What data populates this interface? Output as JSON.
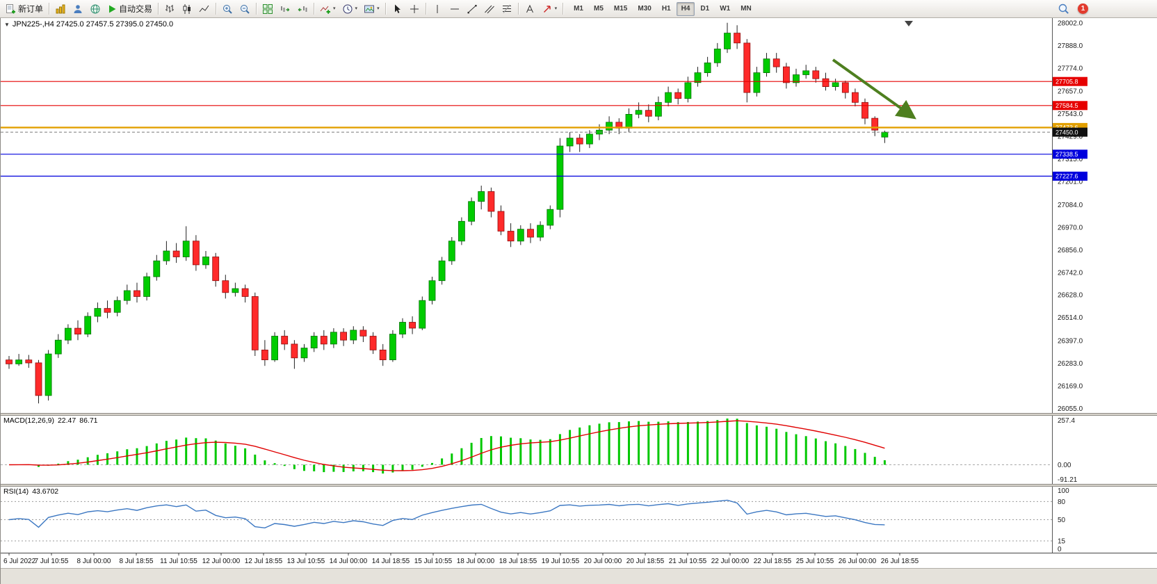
{
  "icons": {
    "dropdown": "▾",
    "collapse": "▼"
  },
  "toolbar": {
    "new_order_label": "新订单",
    "auto_trading_label": "自动交易",
    "timeframes": [
      "M1",
      "M5",
      "M15",
      "M30",
      "H1",
      "H4",
      "D1",
      "W1",
      "MN"
    ],
    "active_timeframe": "H4",
    "notification_count": "1"
  },
  "header": {
    "symbol_info": "JPN225-,H4 27425.0 27457.5 27395.0 27450.0"
  },
  "macd": {
    "name": "MACD(12,26,9)",
    "value_main": "22.47",
    "value_signal": "86.71"
  },
  "rsi": {
    "name": "RSI(14)",
    "value": "43.6702"
  },
  "chart_data": {
    "type": "candlestick",
    "symbol": "JPN225-",
    "timeframe": "H4",
    "ohlc_display": {
      "open": 27425.0,
      "high": 27457.5,
      "low": 27395.0,
      "close": 27450.0
    },
    "ylim": [
      26032,
      28026
    ],
    "y_ticks": [
      28002,
      27888,
      27774,
      27657,
      27543,
      27429,
      27315,
      27201,
      27084,
      26970,
      26856,
      26742,
      26628,
      26514,
      26397,
      26283,
      26169,
      26055
    ],
    "x_labels": [
      "6 Jul 2022",
      "7 Jul 10:55",
      "8 Jul 00:00",
      "8 Jul 18:55",
      "11 Jul 10:55",
      "12 Jul 00:00",
      "12 Jul 18:55",
      "13 Jul 10:55",
      "14 Jul 00:00",
      "14 Jul 18:55",
      "15 Jul 10:55",
      "18 Jul 00:00",
      "18 Jul 18:55",
      "19 Jul 10:55",
      "20 Jul 00:00",
      "20 Jul 18:55",
      "21 Jul 10:55",
      "22 Jul 00:00",
      "22 Jul 18:55",
      "25 Jul 10:55",
      "26 Jul 00:00",
      "26 Jul 18:55"
    ],
    "hlines": [
      {
        "price": 27705.8,
        "color": "#e60000",
        "width": 1.2
      },
      {
        "price": 27584.5,
        "color": "#e60000",
        "width": 1.2
      },
      {
        "price": 27473.6,
        "color": "#e2a000",
        "width": 2.4
      },
      {
        "price": 27338.5,
        "color": "#0000dd",
        "width": 1.2
      },
      {
        "price": 27227.6,
        "color": "#0000dd",
        "width": 1.2
      }
    ],
    "current_price": 27450.0,
    "up_color": "#00cc00",
    "down_color": "#ff2a2a",
    "wick_color": "#222222",
    "trend_arrow": {
      "color": "#4e7f1f"
    },
    "candles": [
      [
        26300,
        26320,
        26255,
        26280
      ],
      [
        26280,
        26330,
        26270,
        26300
      ],
      [
        26300,
        26325,
        26260,
        26285
      ],
      [
        26285,
        26300,
        26080,
        26120
      ],
      [
        26120,
        26350,
        26095,
        26330
      ],
      [
        26330,
        26430,
        26310,
        26400
      ],
      [
        26400,
        26480,
        26380,
        26460
      ],
      [
        26460,
        26500,
        26400,
        26430
      ],
      [
        26430,
        26540,
        26415,
        26520
      ],
      [
        26520,
        26590,
        26490,
        26560
      ],
      [
        26560,
        26600,
        26510,
        26540
      ],
      [
        26540,
        26620,
        26520,
        26600
      ],
      [
        26600,
        26680,
        26580,
        26650
      ],
      [
        26650,
        26690,
        26590,
        26620
      ],
      [
        26620,
        26740,
        26600,
        26720
      ],
      [
        26720,
        26830,
        26700,
        26800
      ],
      [
        26800,
        26900,
        26780,
        26850
      ],
      [
        26850,
        26890,
        26790,
        26820
      ],
      [
        26820,
        26975,
        26800,
        26900
      ],
      [
        26900,
        26930,
        26750,
        26780
      ],
      [
        26780,
        26850,
        26760,
        26820
      ],
      [
        26820,
        26840,
        26670,
        26700
      ],
      [
        26700,
        26730,
        26610,
        26640
      ],
      [
        26640,
        26690,
        26620,
        26660
      ],
      [
        26660,
        26680,
        26590,
        26620
      ],
      [
        26620,
        26640,
        26320,
        26350
      ],
      [
        26350,
        26400,
        26270,
        26300
      ],
      [
        26300,
        26440,
        26290,
        26420
      ],
      [
        26420,
        26450,
        26350,
        26380
      ],
      [
        26380,
        26400,
        26255,
        26310
      ],
      [
        26310,
        26380,
        26290,
        26360
      ],
      [
        26360,
        26440,
        26340,
        26420
      ],
      [
        26420,
        26450,
        26350,
        26380
      ],
      [
        26380,
        26460,
        26360,
        26440
      ],
      [
        26440,
        26460,
        26370,
        26400
      ],
      [
        26400,
        26470,
        26380,
        26450
      ],
      [
        26450,
        26470,
        26390,
        26420
      ],
      [
        26420,
        26440,
        26330,
        26350
      ],
      [
        26350,
        26380,
        26270,
        26300
      ],
      [
        26300,
        26450,
        26290,
        26430
      ],
      [
        26430,
        26510,
        26410,
        26490
      ],
      [
        26490,
        26520,
        26430,
        26460
      ],
      [
        26460,
        26620,
        26450,
        26600
      ],
      [
        26600,
        26720,
        26580,
        26700
      ],
      [
        26700,
        26820,
        26680,
        26800
      ],
      [
        26800,
        26920,
        26780,
        26900
      ],
      [
        26900,
        27020,
        26880,
        27000
      ],
      [
        27000,
        27120,
        26980,
        27100
      ],
      [
        27100,
        27180,
        27060,
        27150
      ],
      [
        27150,
        27170,
        27020,
        27050
      ],
      [
        27050,
        27080,
        26930,
        26950
      ],
      [
        26950,
        26990,
        26870,
        26900
      ],
      [
        26900,
        26980,
        26880,
        26960
      ],
      [
        26960,
        26990,
        26890,
        26920
      ],
      [
        26920,
        27000,
        26900,
        26980
      ],
      [
        26980,
        27080,
        26960,
        27060
      ],
      [
        27060,
        27420,
        27020,
        27380
      ],
      [
        27380,
        27450,
        27350,
        27420
      ],
      [
        27420,
        27440,
        27350,
        27390
      ],
      [
        27390,
        27460,
        27370,
        27440
      ],
      [
        27440,
        27490,
        27410,
        27460
      ],
      [
        27460,
        27530,
        27440,
        27500
      ],
      [
        27500,
        27520,
        27440,
        27470
      ],
      [
        27470,
        27570,
        27450,
        27540
      ],
      [
        27540,
        27600,
        27520,
        27560
      ],
      [
        27560,
        27590,
        27500,
        27530
      ],
      [
        27530,
        27630,
        27510,
        27600
      ],
      [
        27600,
        27680,
        27580,
        27650
      ],
      [
        27650,
        27670,
        27590,
        27620
      ],
      [
        27620,
        27730,
        27600,
        27700
      ],
      [
        27700,
        27780,
        27680,
        27750
      ],
      [
        27750,
        27830,
        27730,
        27800
      ],
      [
        27800,
        27900,
        27780,
        27870
      ],
      [
        27870,
        28002,
        27850,
        27950
      ],
      [
        27950,
        27990,
        27870,
        27900
      ],
      [
        27900,
        27920,
        27600,
        27650
      ],
      [
        27650,
        27780,
        27630,
        27750
      ],
      [
        27750,
        27850,
        27730,
        27820
      ],
      [
        27820,
        27850,
        27750,
        27780
      ],
      [
        27780,
        27800,
        27670,
        27700
      ],
      [
        27700,
        27770,
        27680,
        27740
      ],
      [
        27740,
        27790,
        27720,
        27760
      ],
      [
        27760,
        27780,
        27700,
        27720
      ],
      [
        27720,
        27750,
        27660,
        27680
      ],
      [
        27680,
        27720,
        27660,
        27700
      ],
      [
        27700,
        27710,
        27620,
        27650
      ],
      [
        27650,
        27670,
        27580,
        27600
      ],
      [
        27600,
        27620,
        27490,
        27520
      ],
      [
        27520,
        27530,
        27430,
        27460
      ],
      [
        27425,
        27457.5,
        27395,
        27450
      ]
    ],
    "indicators": [
      {
        "name": "MACD",
        "params": [
          12,
          26,
          9
        ],
        "histogram_color": "#00c800",
        "signal_color": "#e00000",
        "scale": {
          "max": 257.4,
          "min": -91.21,
          "max_label": "257.4",
          "zero_label": "0.00",
          "min_label": "-91.21"
        }
      },
      {
        "name": "RSI",
        "period": 14,
        "line_color": "#3b77c2",
        "levels": [
          80,
          50,
          15
        ],
        "scale_ticks": [
          100,
          80,
          50,
          15,
          0
        ]
      }
    ]
  }
}
